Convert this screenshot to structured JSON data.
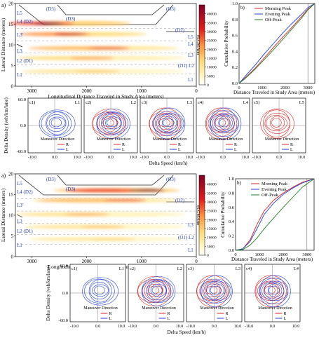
{
  "panels": [
    {
      "id": "top",
      "heatmap": {
        "tag": "a)",
        "ylabel": "Lateral Distance (meters)",
        "xlabel": "Longitudinal Distance Traveled in Study Area (meters)",
        "x_ticks": [
          "3000",
          "2000",
          "1000",
          "0"
        ],
        "y_ticks": [
          "0",
          "5",
          "10",
          "15",
          "20"
        ],
        "colorbar_label": "#LCMAnn",
        "colorbar_ticks": [
          "0",
          "5000",
          "10000",
          "15000",
          "20000",
          "25000",
          "30000",
          "35000",
          "40000"
        ],
        "colorbar_max": 45000,
        "lane_labels_left": [
          "L5",
          "L4 (D2)",
          "L3'",
          "L3",
          "L2 (D1)",
          "L1"
        ],
        "lane_labels_right": [
          "(O3)",
          "(O2)",
          "L5",
          "L4",
          "L3",
          "(O1) L2",
          "L1"
        ],
        "lane_labels_top": [
          "(D3)",
          "(D3)"
        ],
        "bands": [
          {
            "y": 15.2,
            "x0": 3100,
            "x1": 1200,
            "peak_x": 2700,
            "intensity": 0.95
          },
          {
            "y": 12.6,
            "x0": 3000,
            "x1": 900,
            "peak_x": 2300,
            "intensity": 0.75
          },
          {
            "y": 9.2,
            "x0": 3000,
            "x1": 300,
            "peak_x": 1600,
            "intensity": 0.6
          },
          {
            "y": 6.8,
            "x0": 3000,
            "x1": 200,
            "peak_x": 1900,
            "intensity": 0.45
          },
          {
            "y": 3.6,
            "x0": 3000,
            "x1": 200,
            "peak_x": 1800,
            "intensity": 0.35
          }
        ]
      },
      "cdf": {
        "tag": "b)",
        "ylabel": "Cumulative Probability",
        "xlabel": "Distance Traveled in Study Area (meters)",
        "x_ticks": [
          "0",
          "1000",
          "2000",
          "3000"
        ],
        "y_ticks": [
          "0.0",
          "0.2",
          "0.4",
          "0.6",
          "0.8",
          "1.0"
        ],
        "xlim": [
          0,
          3300
        ],
        "ylim": [
          0,
          1
        ],
        "series": [
          {
            "name": "Morning Peak",
            "color": "#e02020",
            "x": [
              0,
              300,
              700,
              1100,
              1500,
              1900,
              2300,
              2700,
              3000,
              3300
            ],
            "y": [
              0,
              0.08,
              0.19,
              0.32,
              0.45,
              0.58,
              0.7,
              0.83,
              0.93,
              1
            ]
          },
          {
            "name": "Evening Peak",
            "color": "#2040e0",
            "x": [
              0,
              300,
              700,
              1100,
              1500,
              1900,
              2300,
              2700,
              3000,
              3300
            ],
            "y": [
              0,
              0.1,
              0.23,
              0.37,
              0.5,
              0.63,
              0.75,
              0.86,
              0.95,
              1
            ]
          },
          {
            "name": "Off-Peak",
            "color": "#208020",
            "x": [
              0,
              300,
              700,
              1100,
              1500,
              1900,
              2300,
              2700,
              3000,
              3300
            ],
            "y": [
              0,
              0.07,
              0.18,
              0.3,
              0.42,
              0.55,
              0.68,
              0.81,
              0.92,
              1
            ]
          }
        ]
      },
      "contours": {
        "ylabel": "Delta Density (veh/km/lane)",
        "xlabel": "Delta Speed (km/h)",
        "y_ticks": [
          "60.0",
          "0.0",
          "-60.0"
        ],
        "x_ticks": [
          "-10.0",
          "0.0",
          "10.0"
        ],
        "legend_title": "Maneuver Direction",
        "legend_items": [
          {
            "label": "R",
            "color": "#e02020"
          },
          {
            "label": "L",
            "color": "#2040e0"
          }
        ],
        "subplots": [
          {
            "tag": "c1)",
            "lane": "L1",
            "red": 0,
            "blue": 1
          },
          {
            "tag": "c2)",
            "lane": "L2",
            "red": 1,
            "blue": 1
          },
          {
            "tag": "c3)",
            "lane": "L3",
            "red": 1,
            "blue": 1
          },
          {
            "tag": "c4)",
            "lane": "L4",
            "red": 1,
            "blue": 1
          },
          {
            "tag": "c5)",
            "lane": "L5",
            "red": 1,
            "blue": 0
          }
        ]
      }
    },
    {
      "id": "bottom",
      "heatmap": {
        "tag": "a)",
        "ylabel": "Lateral Distance (meters)",
        "xlabel": "Longitudinal Distance Traveled in Study Area (meters)",
        "x_ticks": [
          "3000",
          "2000",
          "1000",
          "0"
        ],
        "y_ticks": [
          "0",
          "5",
          "10",
          "15",
          "20"
        ],
        "colorbar_label": "#LCMAnn",
        "colorbar_ticks": [
          "0",
          "5000",
          "10000",
          "15000",
          "20000",
          "25000",
          "30000",
          "35000",
          "40000"
        ],
        "colorbar_max": 45000,
        "lane_labels_left": [
          "L5",
          "L4 (D2)",
          "L3'",
          "L3",
          "L2 (D1)",
          "L1"
        ],
        "lane_labels_right": [
          "(O3)",
          "(O2)",
          "L3",
          "(O1) L2",
          "L1"
        ],
        "lane_labels_top": [
          "(D3)",
          "(D3)"
        ],
        "bands": [
          {
            "y": 16.0,
            "x0": 2600,
            "x1": 300,
            "peak_x": 900,
            "intensity": 0.98
          },
          {
            "y": 13.6,
            "x0": 3000,
            "x1": 300,
            "peak_x": 1300,
            "intensity": 0.6
          },
          {
            "y": 10.2,
            "x0": 3000,
            "x1": 200,
            "peak_x": 2000,
            "intensity": 0.4
          },
          {
            "y": 7.2,
            "x0": 3000,
            "x1": 200,
            "peak_x": 1700,
            "intensity": 0.35
          },
          {
            "y": 4.2,
            "x0": 3000,
            "x1": 200,
            "peak_x": 1500,
            "intensity": 0.3
          }
        ]
      },
      "cdf": {
        "tag": "b)",
        "ylabel": "Cumulative Probability",
        "xlabel": "Distance Traveled in Study Area (meters)",
        "x_ticks": [
          "0",
          "1000",
          "2000",
          "3000"
        ],
        "y_ticks": [
          "0.0",
          "0.2",
          "0.4",
          "0.6",
          "0.8",
          "1.0"
        ],
        "xlim": [
          0,
          3300
        ],
        "ylim": [
          0,
          1
        ],
        "series": [
          {
            "name": "Morning Peak",
            "color": "#e02020",
            "x": [
              0,
              300,
              600,
              900,
              1200,
              1600,
              2000,
              2400,
              2800,
              3300
            ],
            "y": [
              0,
              0.02,
              0.14,
              0.36,
              0.55,
              0.7,
              0.8,
              0.88,
              0.95,
              1
            ]
          },
          {
            "name": "Evening Peak",
            "color": "#2040e0",
            "x": [
              0,
              300,
              600,
              900,
              1200,
              1600,
              2000,
              2400,
              2800,
              3300
            ],
            "y": [
              0,
              0.02,
              0.12,
              0.3,
              0.5,
              0.66,
              0.78,
              0.87,
              0.94,
              1
            ]
          },
          {
            "name": "Off-Peak",
            "color": "#208020",
            "x": [
              0,
              300,
              600,
              900,
              1200,
              1600,
              2000,
              2400,
              2800,
              3300
            ],
            "y": [
              0,
              0.01,
              0.07,
              0.17,
              0.3,
              0.45,
              0.6,
              0.74,
              0.88,
              1
            ]
          }
        ]
      },
      "contours": {
        "ylabel": "Delta Density (veh/km/lane)",
        "xlabel": "Delta Speed (km/h)",
        "y_ticks": [
          "60.0",
          "0.0",
          "-60.0"
        ],
        "x_ticks": [
          "-10.0",
          "0.0",
          "10.0"
        ],
        "legend_title": "Maneuver Direction",
        "legend_items": [
          {
            "label": "R",
            "color": "#e02020"
          },
          {
            "label": "L",
            "color": "#2040e0"
          }
        ],
        "subplots": [
          {
            "tag": "c1)",
            "lane": "L1",
            "red": 0,
            "blue": 1
          },
          {
            "tag": "c2)",
            "lane": "L2",
            "red": 1,
            "blue": 1
          },
          {
            "tag": "c3)",
            "lane": "L3",
            "red": 1,
            "blue": 1
          },
          {
            "tag": "c4)",
            "lane": "L4",
            "red": 1,
            "blue": 1
          }
        ]
      }
    }
  ]
}
